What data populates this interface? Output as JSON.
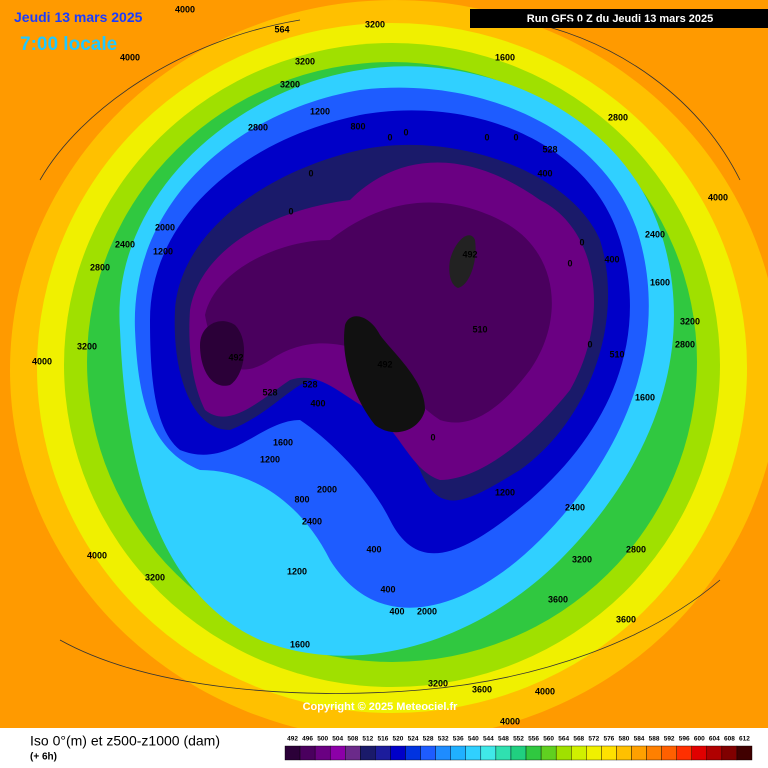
{
  "header": {
    "date": "Jeudi 13 mars 2025",
    "time": "7:00 locale",
    "run": "Run GFS 0 Z du Jeudi 13 mars 2025"
  },
  "map_labels": [
    "564",
    "4000",
    "3200",
    "3200",
    "3200",
    "4000",
    "2800",
    "1200",
    "800",
    "0",
    "0",
    "0",
    "0",
    "528",
    "400",
    "1600",
    "2800",
    "2400",
    "0",
    "0",
    "2000",
    "2400",
    "1200",
    "2800",
    "492",
    "492",
    "492",
    "510",
    "510",
    "528",
    "528",
    "400",
    "0",
    "1600",
    "1200",
    "2000",
    "2400",
    "800",
    "400",
    "400",
    "2000",
    "400",
    "1200",
    "2400",
    "2800",
    "3200",
    "3600",
    "3600",
    "4000",
    "3200",
    "3600",
    "1600",
    "1200",
    "3200",
    "4000",
    "3200",
    "4000",
    "4000",
    "2400",
    "1600",
    "400",
    "0",
    "2800",
    "3200",
    "1600",
    "4000",
    "0",
    "0"
  ],
  "copyright": "Copyright © 2025 Meteociel.fr",
  "footer": {
    "title": "Iso 0°(m) et z500-z1000 (dam)",
    "step": "(+ 6h)"
  },
  "scale": {
    "values": [
      492,
      496,
      500,
      504,
      508,
      512,
      516,
      520,
      524,
      528,
      532,
      536,
      540,
      544,
      548,
      552,
      556,
      560,
      564,
      568,
      572,
      576,
      580,
      584,
      588,
      592,
      596,
      600,
      604,
      608,
      612
    ],
    "colors": [
      "#2b0038",
      "#4a005e",
      "#6a0082",
      "#8c00a8",
      "#6b2a8a",
      "#1a1a6a",
      "#1c1c9c",
      "#0000c8",
      "#0033e0",
      "#1e5cff",
      "#1e8cff",
      "#20b0ff",
      "#30d0ff",
      "#40e8e8",
      "#30e0b0",
      "#20d080",
      "#30c840",
      "#60d020",
      "#a0e000",
      "#d0f000",
      "#f0f000",
      "#ffe000",
      "#ffc000",
      "#ffa000",
      "#ff8000",
      "#ff6000",
      "#ff3000",
      "#e00000",
      "#b00000",
      "#800000",
      "#400000"
    ]
  }
}
